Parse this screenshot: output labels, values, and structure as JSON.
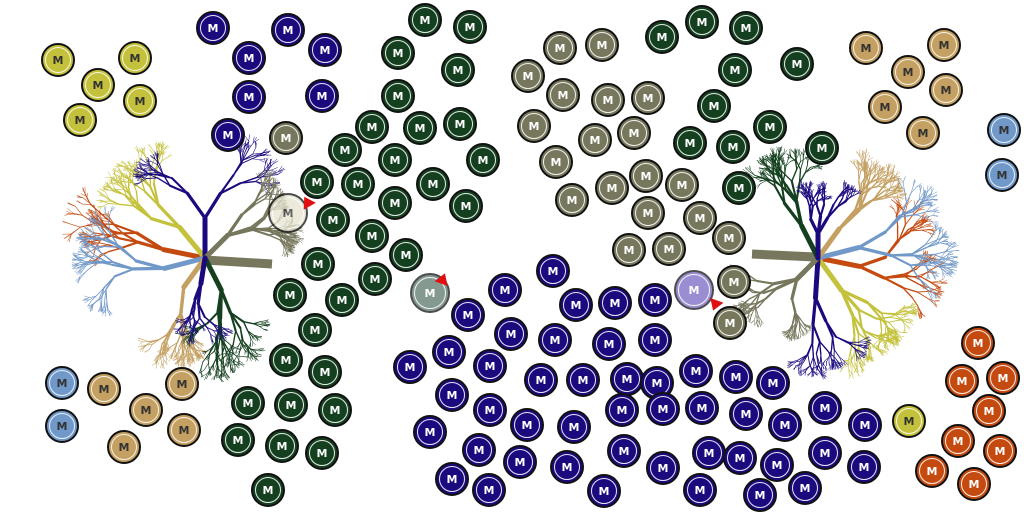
{
  "token_label": "M",
  "colors": {
    "navy": "#1a0a7e",
    "forest": "#14401f",
    "olive": "#77775d",
    "sand": "#c4a062",
    "steel": "#7098c8",
    "rust": "#c44a10",
    "lime": "#c4c23c",
    "pale": "#e6e3d0",
    "sage": "#5c786c",
    "violet": "#7a68c4",
    "marker": "#e01010"
  },
  "left_cluster": {
    "lime": 5,
    "navy": 7,
    "olive": 1,
    "forest": 28,
    "steel": 2,
    "sand": 6
  },
  "right_cluster": {
    "sand": 7,
    "steel": 2,
    "lime": 1,
    "rust": 10
  },
  "center": {
    "olive": 17,
    "forest": 15,
    "navy": 61
  },
  "selected_tokens": [
    {
      "color": "pale",
      "state": "ghost",
      "marker": "red-arrow"
    },
    {
      "color": "sage",
      "state": "ghost",
      "marker": "red-arrow"
    },
    {
      "color": "violet",
      "state": "ghost",
      "marker": "red-arrow"
    }
  ]
}
